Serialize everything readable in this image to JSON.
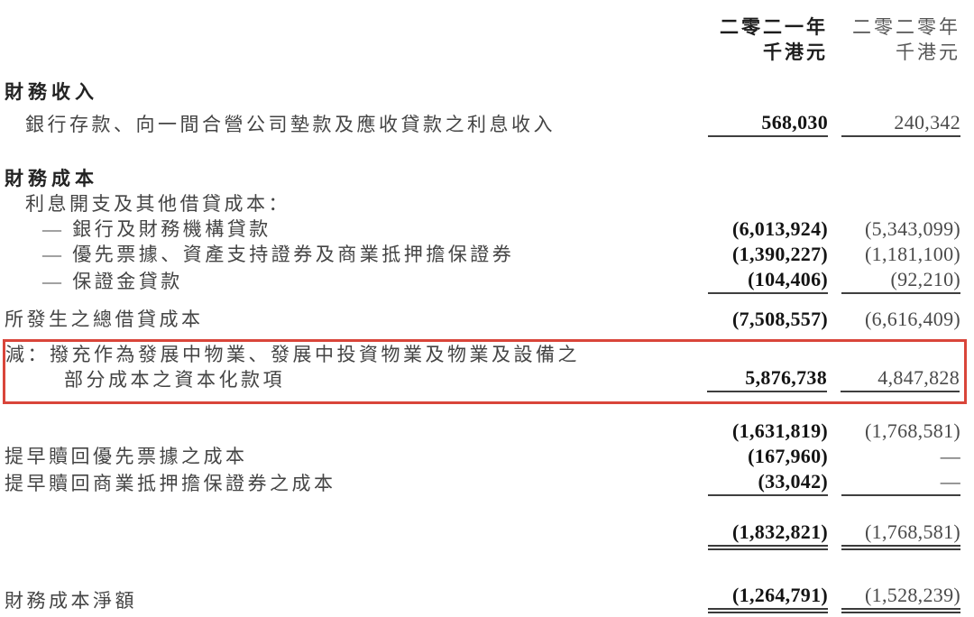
{
  "columns": {
    "year1_label": "二零二一年",
    "year1_unit": "千港元",
    "year2_label": "二零二零年",
    "year2_unit": "千港元"
  },
  "colors": {
    "highlight_red": "#d9453a",
    "value_bold": "#141414",
    "value_regular": "#4a4a4a",
    "rule_line": "#3f3f3f"
  },
  "table": {
    "rows": [
      {
        "type": "heading",
        "label": "財務收入",
        "indent": 0,
        "v1": "",
        "v2": "",
        "underline": "none",
        "highlight": false,
        "gap": "g16"
      },
      {
        "type": "item",
        "label": "銀行存款、向一間合營公司墊款及應收貸款之利息收入",
        "indent": 1,
        "v1": "568,030",
        "v2": "240,342",
        "underline": "single",
        "highlight": false,
        "gap": "g6"
      },
      {
        "type": "heading",
        "label": "財務成本",
        "indent": 0,
        "v1": "",
        "v2": "",
        "underline": "none",
        "highlight": false,
        "gap": "g32"
      },
      {
        "type": "item",
        "label": "利息開支及其他借貸成本：",
        "indent": 1,
        "v1": "",
        "v2": "",
        "underline": "none",
        "highlight": false,
        "gap": ""
      },
      {
        "type": "item",
        "label": "— 銀行及財務機構貸款",
        "indent": 2,
        "v1": "(6,013,924)",
        "v2": "(5,343,099)",
        "underline": "none",
        "highlight": false,
        "gap": ""
      },
      {
        "type": "item",
        "label": "— 優先票據、資產支持證券及商業抵押擔保證券",
        "indent": 2,
        "v1": "(1,390,227)",
        "v2": "(1,181,100)",
        "underline": "none",
        "highlight": false,
        "gap": ""
      },
      {
        "type": "item",
        "label": "— 保證金貸款",
        "indent": 2,
        "v1": "(104,406)",
        "v2": "(92,210)",
        "underline": "single",
        "highlight": false,
        "gap": ""
      },
      {
        "type": "item",
        "label": "所發生之總借貸成本",
        "indent": 0,
        "v1": "(7,508,557)",
        "v2": "(6,616,409)",
        "underline": "none",
        "highlight": false,
        "gap": "g14"
      },
      {
        "type": "item",
        "label": "減：撥充作為發展中物業、發展中投資物業及物業及設備之",
        "label2": "部分成本之資本化款項",
        "indent": 0,
        "v1": "5,876,738",
        "v2": "4,847,828",
        "underline": "single",
        "highlight": true,
        "gap": ""
      },
      {
        "type": "item",
        "label": "",
        "indent": 0,
        "v1": "(1,631,819)",
        "v2": "(1,768,581)",
        "underline": "none",
        "highlight": false,
        "gap": "g16"
      },
      {
        "type": "item",
        "label": "提早贖回優先票據之成本",
        "indent": 0,
        "v1": "(167,960)",
        "v2": "—",
        "underline": "none",
        "highlight": false,
        "gap": ""
      },
      {
        "type": "item",
        "label": "提早贖回商業抵押擔保證券之成本",
        "indent": 0,
        "v1": "(33,042)",
        "v2": "—",
        "underline": "single",
        "highlight": false,
        "gap": ""
      },
      {
        "type": "item",
        "label": "",
        "indent": 0,
        "v1": "(1,832,821)",
        "v2": "(1,768,581)",
        "underline": "double",
        "highlight": false,
        "gap": "g26"
      },
      {
        "type": "item",
        "label": "財務成本淨額",
        "indent": 0,
        "v1": "(1,264,791)",
        "v2": "(1,528,239)",
        "underline": "double",
        "highlight": false,
        "gap": "g36"
      }
    ]
  }
}
